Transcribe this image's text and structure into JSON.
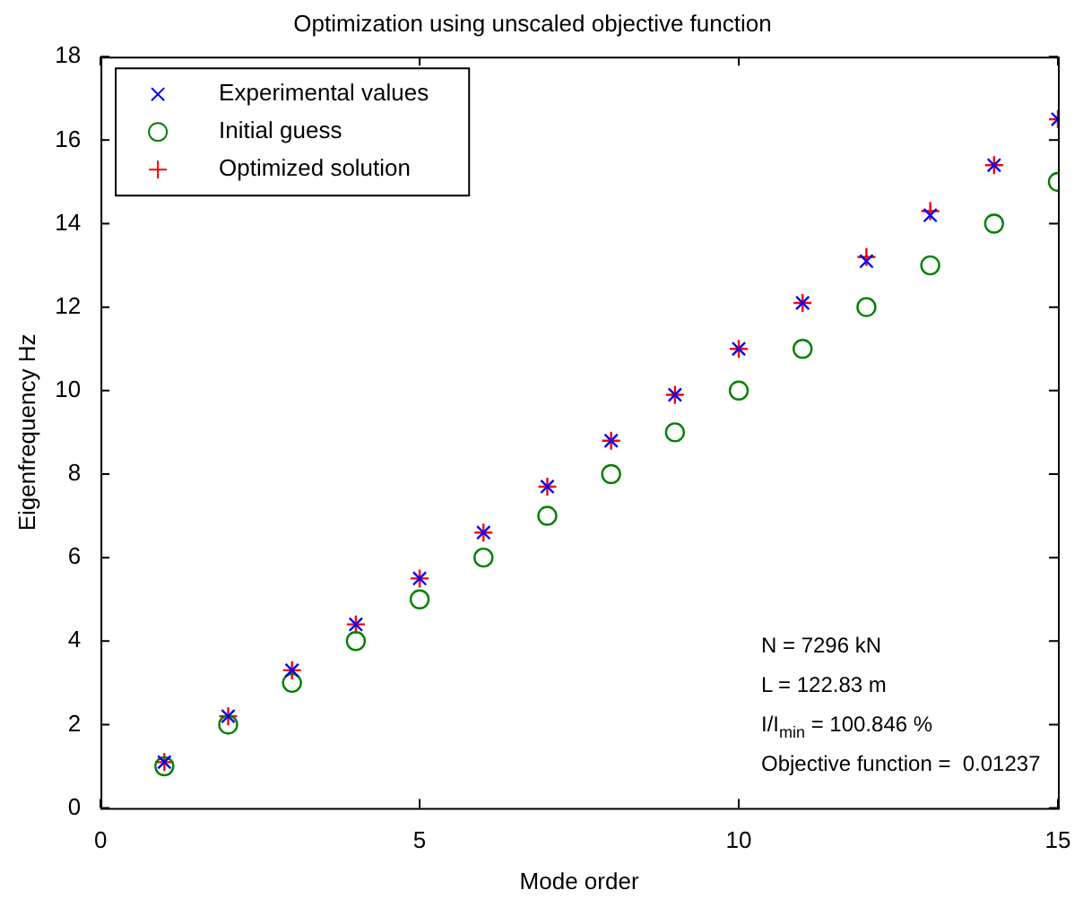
{
  "chart_data": {
    "type": "scatter",
    "title": "Optimization using unscaled objective function",
    "xlabel": "Mode order",
    "ylabel": "Eigenfrequency Hz",
    "x": [
      1,
      2,
      3,
      4,
      5,
      6,
      7,
      8,
      9,
      10,
      11,
      12,
      13,
      14,
      15
    ],
    "series": [
      {
        "name": "Experimental values",
        "color": "#0000ff",
        "marker": "cross",
        "values": [
          1.1,
          2.2,
          3.3,
          4.4,
          5.5,
          6.6,
          7.7,
          8.8,
          9.9,
          11.0,
          12.1,
          13.1,
          14.2,
          15.4,
          16.5
        ]
      },
      {
        "name": "Initial guess",
        "color": "#008000",
        "marker": "circle",
        "values": [
          1,
          2,
          3,
          4,
          5,
          6,
          7,
          8,
          9,
          10,
          11,
          12,
          13,
          14,
          15
        ]
      },
      {
        "name": "Optimized solution",
        "color": "#ff0000",
        "marker": "plus",
        "values": [
          1.1,
          2.2,
          3.3,
          4.4,
          5.5,
          6.6,
          7.7,
          8.8,
          9.9,
          11.0,
          12.1,
          13.2,
          14.3,
          15.4,
          16.5
        ]
      }
    ],
    "xlim": [
      0,
      15
    ],
    "xticks": [
      0,
      5,
      10,
      15
    ],
    "ylim": [
      0,
      18
    ],
    "yticks": [
      0,
      2,
      4,
      6,
      8,
      10,
      12,
      14,
      16,
      18
    ],
    "grid": false,
    "legend": "top left",
    "annotations": [
      "N = 7296 kN",
      "L = 122.83 m",
      "I/I$_{min}$ = 100.846 %",
      "Objective function =  0.01237"
    ]
  }
}
